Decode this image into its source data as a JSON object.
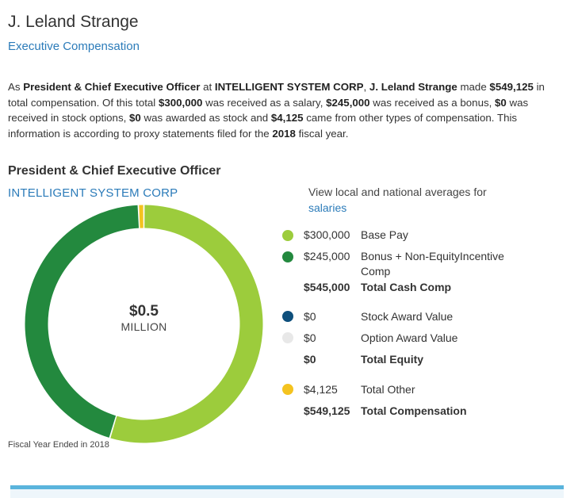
{
  "header": {
    "name": "J. Leland Strange",
    "subtitle": "Executive Compensation"
  },
  "summary": {
    "p1": "As ",
    "role": "President & Chief Executive Officer",
    "p2": " at ",
    "company": "INTELLIGENT SYSTEM CORP",
    "p3": ", ",
    "name": "J. Leland Strange",
    "p4": " made ",
    "total": "$549,125",
    "p5": " in total compensation. Of this total ",
    "salary": "$300,000",
    "p6": " was received as a salary, ",
    "bonus": "$245,000",
    "p7": " was received as a bonus, ",
    "options": "$0",
    "p8": " was received in stock options, ",
    "stock": "$0",
    "p9": " was awarded as stock and ",
    "other": "$4,125",
    "p10": " came from other types of compensation. This information is according to proxy statements filed for the ",
    "year": "2018",
    "p11": " fiscal year."
  },
  "section": {
    "heading": "President & Chief Executive Officer",
    "company": "INTELLIGENT SYSTEM CORP",
    "view_text": "View local and national averages for",
    "salaries_link": "salaries"
  },
  "donut": {
    "center_value": "$0.5",
    "center_unit": "MILLION"
  },
  "legend": {
    "base_pay": {
      "amount": "$300,000",
      "label": "Base Pay",
      "color": "#9ccc3c"
    },
    "bonus": {
      "amount": "$245,000",
      "label": "Bonus + Non-EquityIncentive Comp",
      "color": "#23893e"
    },
    "total_cash": {
      "amount": "$545,000",
      "label": "Total Cash Comp"
    },
    "stock_award": {
      "amount": "$0",
      "label": "Stock Award Value",
      "color": "#0e4f7c"
    },
    "option_award": {
      "amount": "$0",
      "label": "Option Award Value",
      "color": "#e8e8e8"
    },
    "total_equity": {
      "amount": "$0",
      "label": "Total Equity"
    },
    "total_other": {
      "amount": "$4,125",
      "label": "Total Other",
      "color": "#f4c31f"
    },
    "total_comp": {
      "amount": "$549,125",
      "label": "Total Compensation"
    }
  },
  "footer": {
    "fiscal_note": "Fiscal Year Ended in 2018"
  },
  "chart_data": {
    "type": "pie",
    "categories": [
      "Base Pay",
      "Bonus + Non-EquityIncentive Comp",
      "Stock Award Value",
      "Option Award Value",
      "Total Other"
    ],
    "values": [
      300000,
      245000,
      0,
      0,
      4125
    ],
    "colors": [
      "#9ccc3c",
      "#23893e",
      "#0e4f7c",
      "#e8e8e8",
      "#f4c31f"
    ],
    "donut": true,
    "center_label": "$0.5 MILLION"
  }
}
